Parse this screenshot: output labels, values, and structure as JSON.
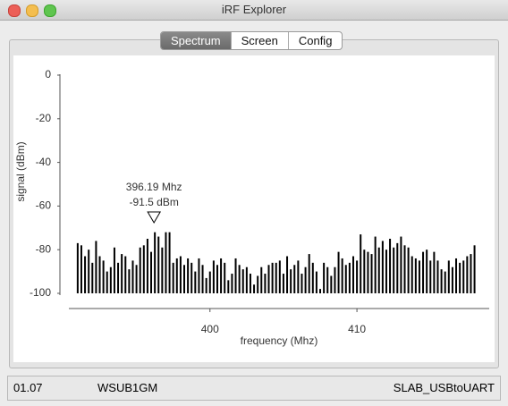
{
  "window": {
    "title": "iRF Explorer"
  },
  "tabs": [
    "Spectrum",
    "Screen",
    "Config"
  ],
  "selected_tab": "Spectrum",
  "chart_data": {
    "type": "bar",
    "xlabel": "frequency (Mhz)",
    "ylabel": "signal (dBm)",
    "x": [
      391,
      391.25,
      391.5,
      391.75,
      392,
      392.25,
      392.5,
      392.75,
      393,
      393.25,
      393.5,
      393.75,
      394,
      394.25,
      394.5,
      394.75,
      395,
      395.25,
      395.5,
      395.75,
      396,
      396.25,
      396.5,
      396.75,
      397,
      397.25,
      397.5,
      397.75,
      398,
      398.25,
      398.5,
      398.75,
      399,
      399.25,
      399.5,
      399.75,
      400,
      400.25,
      400.5,
      400.75,
      401,
      401.25,
      401.5,
      401.75,
      402,
      402.25,
      402.5,
      402.75,
      403,
      403.25,
      403.5,
      403.75,
      404,
      404.25,
      404.5,
      404.75,
      405,
      405.25,
      405.5,
      405.75,
      406,
      406.25,
      406.5,
      406.75,
      407,
      407.25,
      407.5,
      407.75,
      408,
      408.25,
      408.5,
      408.75,
      409,
      409.25,
      409.5,
      409.75,
      410,
      410.25,
      410.5,
      410.75,
      411,
      411.25,
      411.5,
      411.75,
      412,
      412.25,
      412.5,
      412.75,
      413,
      413.25,
      413.5,
      413.75,
      414,
      414.25,
      414.5,
      414.75,
      415,
      415.25,
      415.5,
      415.75,
      416,
      416.25,
      416.5,
      416.75,
      417,
      417.25,
      417.5,
      417.75,
      418
    ],
    "values": [
      -77,
      -78,
      -83,
      -80,
      -86,
      -76,
      -83,
      -85,
      -90,
      -88,
      -79,
      -86,
      -82,
      -83,
      -89,
      -85,
      -87,
      -79,
      -78,
      -75,
      -81,
      -72,
      -74,
      -79,
      -72,
      -72,
      -86,
      -84,
      -83,
      -87,
      -84,
      -86,
      -90,
      -84,
      -87,
      -93,
      -90,
      -85,
      -87,
      -84,
      -86,
      -94,
      -91,
      -84,
      -87,
      -89,
      -88,
      -91,
      -96,
      -92,
      -88,
      -91,
      -87,
      -86,
      -86,
      -85,
      -91,
      -83,
      -89,
      -87,
      -85,
      -91,
      -88,
      -82,
      -86,
      -90,
      -98,
      -86,
      -88,
      -92,
      -88,
      -81,
      -84,
      -87,
      -86,
      -83,
      -85,
      -73,
      -80,
      -81,
      -82,
      -74,
      -79,
      -76,
      -80,
      -75,
      -79,
      -77,
      -74,
      -78,
      -79,
      -83,
      -84,
      -85,
      -81,
      -80,
      -85,
      -81,
      -85,
      -89,
      -90,
      -85,
      -88,
      -84,
      -86,
      -85,
      -83,
      -82,
      -78
    ],
    "color": "#000000",
    "xlim": [
      390.4,
      419.0
    ],
    "xticks": [
      400,
      410
    ],
    "ylim": [
      -100,
      0
    ],
    "yticks": [
      0,
      -20,
      -40,
      -60,
      -80,
      -100
    ],
    "annotations": [
      {
        "x": 396.19,
        "text": "396.19 Mhz"
      },
      {
        "text": "-91.5 dBm"
      }
    ]
  },
  "status": {
    "version": "01.07",
    "device": "WSUB1GM",
    "port": "SLAB_USBtoUART"
  }
}
